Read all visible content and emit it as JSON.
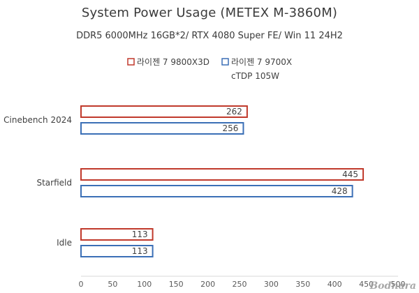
{
  "chart_data": {
    "type": "bar",
    "orientation": "horizontal",
    "title": "System Power Usage (METEX M-3860M)",
    "subtitle": "DDR5 6000MHz 16GB*2/ RTX 4080 Super FE/ Win 11 24H2",
    "categories": [
      "Cinebench 2024",
      "Starfield",
      "Idle"
    ],
    "series": [
      {
        "name": "라이젠 7 9800X3D",
        "values": [
          262,
          445,
          113
        ],
        "color": "#c0392b"
      },
      {
        "name": "라이젠 7 9700X",
        "note": "cTDP 105W",
        "values": [
          256,
          428,
          113
        ],
        "color": "#3b6fb6"
      }
    ],
    "xlim": [
      0,
      500
    ],
    "xticks": [
      0,
      50,
      100,
      150,
      200,
      250,
      300,
      350,
      400,
      450,
      500
    ],
    "grid": false,
    "legend_position": "top"
  },
  "watermark": "Bodnara"
}
